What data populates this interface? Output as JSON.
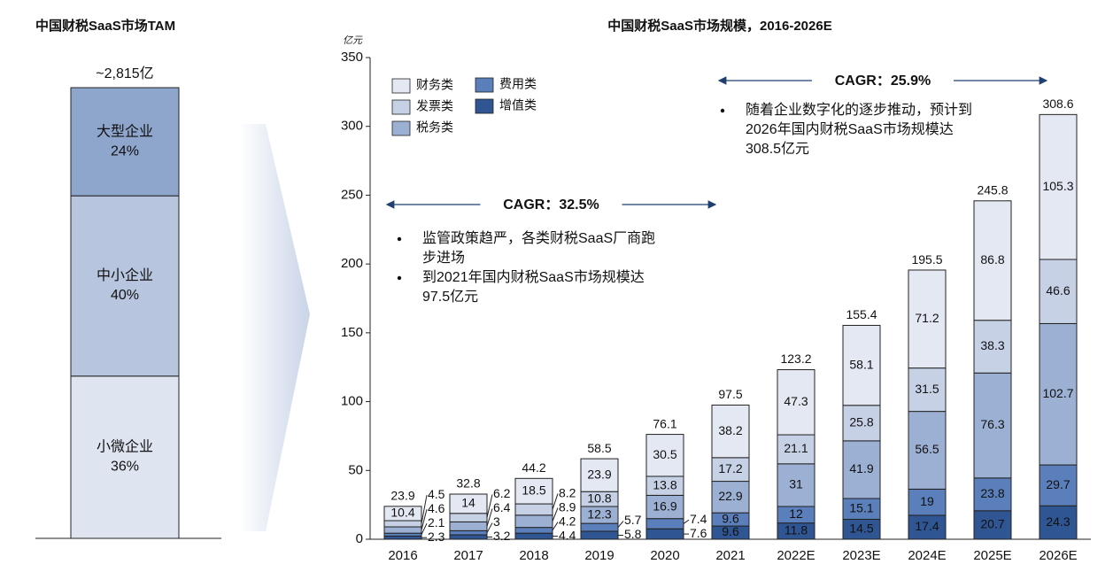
{
  "chart_data": [
    {
      "type": "stacked_bar",
      "title": "中国财税SaaS市场TAM",
      "total_label": "~2,815亿",
      "series": [
        {
          "name": "小微企业",
          "values": [
            36
          ],
          "value_labels": [
            "36%"
          ],
          "color": "#dfe5f0"
        },
        {
          "name": "中小企业",
          "values": [
            40
          ],
          "value_labels": [
            "40%"
          ],
          "color": "#b7c6de"
        },
        {
          "name": "大型企业",
          "values": [
            24
          ],
          "value_labels": [
            "24%"
          ],
          "color": "#8ea6cc"
        }
      ]
    },
    {
      "type": "stacked_bar",
      "title": "中国财税SaaS市场规模，2016-2026E",
      "y_unit": "亿元",
      "categories": [
        "2016",
        "2017",
        "2018",
        "2019",
        "2020",
        "2021",
        "2022E",
        "2023E",
        "2024E",
        "2025E",
        "2026E"
      ],
      "series": [
        {
          "name": "增值类",
          "color": "#2f5592",
          "label_color": "#ffffff",
          "values": [
            2.3,
            3.2,
            4.4,
            5.8,
            7.6,
            9.6,
            11.8,
            14.5,
            17.4,
            20.7,
            24.3
          ]
        },
        {
          "name": "费用类",
          "color": "#5b7fba",
          "label_color": "#ffffff",
          "values": [
            2.1,
            3.0,
            4.2,
            5.7,
            7.4,
            9.6,
            12.0,
            15.1,
            19.0,
            23.8,
            29.7
          ]
        },
        {
          "name": "税务类",
          "color": "#9cb0d4",
          "label_color": "#111111",
          "values": [
            4.6,
            6.4,
            8.9,
            12.3,
            16.9,
            22.9,
            31.0,
            41.9,
            56.5,
            76.3,
            102.7
          ]
        },
        {
          "name": "发票类",
          "color": "#c6d1e6",
          "label_color": "#111111",
          "values": [
            4.5,
            6.2,
            8.2,
            10.8,
            13.8,
            17.2,
            21.1,
            25.8,
            31.5,
            38.3,
            46.6
          ]
        },
        {
          "name": "财务类",
          "color": "#e3e8f2",
          "label_color": "#111111",
          "values": [
            10.4,
            14.0,
            18.5,
            23.9,
            30.5,
            38.2,
            47.3,
            58.1,
            71.2,
            86.8,
            105.3
          ]
        }
      ],
      "totals": [
        23.9,
        32.8,
        44.2,
        58.5,
        76.1,
        97.5,
        123.2,
        155.4,
        195.5,
        245.8,
        308.6
      ],
      "ylim": [
        0,
        350
      ],
      "yticks": [
        0,
        50,
        100,
        150,
        200,
        250,
        300,
        350
      ],
      "annotations": [
        {
          "text": "CAGR：32.5%",
          "color": "#c00000",
          "bullets": [
            [
              "监管政策趋严，各类财税SaaS厂商跑",
              "步进场"
            ],
            [
              "到2021年国内财税SaaS市场规模达",
              "97.5亿元"
            ]
          ]
        },
        {
          "text": "CAGR：25.9%",
          "color": "#c00000",
          "bullets": [
            [
              "随着企业数字化的逐步推动，预计到",
              "2026年国内财税SaaS市场规模达",
              "308.5亿元"
            ]
          ]
        }
      ]
    }
  ]
}
